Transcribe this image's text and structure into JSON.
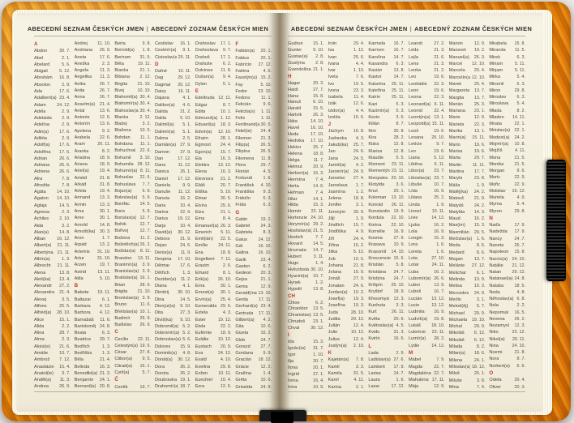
{
  "colors": {
    "cover_orange": "#e8830a",
    "accent_red": "#c0392b",
    "paper": "#f4efe0",
    "text": "#4c453d"
  },
  "band_icon": "elastic-band",
  "ribbon_icon": "bookmark-ribbon",
  "pages": [
    {
      "header_left": "ABECEDNÍ SEZNAM ČESKÝCH JMEN",
      "header_sep": "|",
      "header_right": "ABECEDNÝ ZOZNAM ČESKÝCH MIEN",
      "columns": [
        [
          "#A",
          "Abdon|30. 7.",
          "Ábel|2. 1.",
          "Abelard|5. 6.",
          "Abigail|5. 12.",
          "Abrahám|16. 8.",
          "Absolon|2. 9.",
          "Ada|17. 6.",
          "Adalbert(a)|23. 4.",
          "Adam|24. 12.",
          "Adéla|2. 9.",
          "Adelaida|2. 9.",
          "Adelína|2. 9.",
          "Adin(a)|17. 6.",
          "Adléta|2. 9.",
          "Adolf(a)|17. 6.",
          "Adolfína|17. 6.",
          "Adrian|26. 6.",
          "Adriana|26. 6.",
          "Adriena|26. 6.",
          "Afra|7. 8.",
          "Afrodita|7. 8.",
          "Agáta|14. 10.",
          "Agaton|14. 10.",
          "Aglaja|14. 5.",
          "Agnesa|2. 3.",
          "Achiles|2. 10.",
          "Aida|3. 2.",
          "Alan(a)|14. 8.",
          "Alban|16. 12.",
          "Albert(a)|21. 11.",
          "Albertýna|21. 11.",
          "Albín(a)|1. 3.",
          "Albrecht|21. 11.",
          "Alena|13. 8.",
          "Aleš(ka)|13. 4.",
          "Alexandr|27. 2.",
          "Alexandra|21. 4.",
          "Alexej|3. 5.",
          "Alfons|25. 5.",
          "Alfréd(a)|28. 10.",
          "Alice|15. 1.",
          "Alida|2. 2.",
          "Alina|28. 7.",
          "Alma|2. 3.",
          "Alois(ie)|21. 6.",
          "Amálie|10. 7.",
          "Ambrož|7. 12.",
          "Anastázie|15. 4.",
          "Anatol(ie)|3. 7.",
          "Anděl(a)|11. 3.",
          "Andrea|26. 9."
        ],
        [
          "Andrej|11. 10.",
          "Andriana|26. 9.",
          "Aneta|17. 6.",
          "Anežka|2. 3.",
          "Angela|11. 3.",
          "Angelika|11. 3.",
          "Anika|26. 7.",
          "Anita|26. 7.",
          "Anna|26. 7.",
          "Anselm(a)|21. 4.",
          "Antal|13. 6.",
          "Antonie|12. 6.",
          "Antonín|13. 6.",
          "Apolena|9. 2.",
          "Arabela|22. 6.",
          "Aram|26. 11.",
          "Aranka|8. 2.",
          "Ariadna|18. 9.",
          "Ariana|18. 9.",
          "Ariel(a)|19. 4.",
          "Aristid|31. 8.",
          "Arkád|31. 8.",
          "Arleta|19. 4.",
          "Armand|13. 3.",
          "Armin|13. 3.",
          "Arna|30. 1.",
          "Arne|30. 1.",
          "Arnold|14. 8.",
          "Arnošt(ka)|30. 3.",
          "Áron|1. 7.",
          "Árpád|13. 2.",
          "Artemis|31. 10.",
          "Artur|31. 10.",
          "Arzen|19. 7.",
          "Astrid|13. 11.",
          "Atila|5. 10.",
          "#B",
          "Babeta|19. 11.",
          "Baltazar|6. 1.",
          "Barbara|4. 12.",
          "Barbora|4. 12.",
          "Barnabáš|11. 6.",
          "Bartoloměj|24. 8.",
          "Beata|6. 3.",
          "Beatrice|29. 7.",
          "Bedřich|1. 3.",
          "Bedřiška|1. 3.",
          "Běla|21. 4.",
          "Belinda|16. 3.",
          "Benedikt(a)|21. 3.",
          "Benjamín|24. 1.",
          "Bernard(a)|20. 8."
        ],
        [
          "Berta|9. 8.",
          "Bertold(a)|1. 8.",
          "Bertram|31. 5.",
          "Běta|19. 11.",
          "Bianka|21. 1.",
          "Bibiana|2. 12.",
          "Birgita|21. 10.",
          "Bivoj|10. 10.",
          "Blahomil(a)|30. 4.",
          "Blahomír(a)|30. 4.",
          "Blahoslav(a)|30. 4.",
          "Blanka|2. 12.",
          "Blažej|3. 2.",
          "Blažena|10. 5.",
          "Bohdan|11. 1.",
          "Bohdana|11. 1.",
          "Bohuchval|22. 6.",
          "Bohumil|3. 10.",
          "Bohumila|28. 12.",
          "Bohumír(a)|8. 11.",
          "Bohuslav|22. 6.",
          "Bohuslava|7. 7.",
          "Bojan(a)|5. 9.",
          "Boleslav(a)|5. 9.",
          "Bonifác|14. 5.",
          "Boris|5. 9.",
          "Borislav(a)|12. 7.",
          "Bořek|12. 7.",
          "Bořivoj|12. 7.",
          "Božena|11. 2.",
          "Božetěch(a)|26. 2.",
          "Božidar(a)|8. 11.",
          "Brandon|13. 11.",
          "Branimír(a)|3. 9.",
          "Branislav(a)|3. 9.",
          "Bratislav(a)|16. 1.",
          "Brian|28. 9.",
          "Brigita|21. 10.",
          "Bronislav(a)|3. 9.",
          "Bruno|11. 6.",
          "Břetislav(a)|10. 1.",
          "Budimír|26. 9.",
          "Budislav|26. 9.",
          "#C",
          "Cecílie|22. 11.",
          "Celestýn(a)|19. 5.",
          "César|27. 8.",
          "Ctibor(a)|9. 5.",
          "Ctirad(a)|16. 1.",
          "Cyril(a)|5. 7.",
          "#Č",
          "Čeněk|19. 7."
        ],
        [
          "Čestislav|16. 1.",
          "Čestmír(a)|9. 1.",
          "Čistoslav(a)|25. 11.",
          "#D",
          "Dafné|10. 11.",
          "Dag|29. 12.",
          "Dagmar|20. 12.",
          "Daisy|16. 11.",
          "Dajana|4. 1.",
          "Dalibor(a)|4. 6.",
          "Dalida|21. 2.",
          "Dalila|5. 10.",
          "Dalimil(a)|5. 1.",
          "Dalimír(a)|5. 1.",
          "Dalma|2. 5.",
          "Damián(a)|27. 9.",
          "Damon|27. 9.",
          "Dan|17. 12.",
          "Dana|11. 12.",
          "Danica|26. 1.",
          "Daniel|17. 12.",
          "Daniela|9. 9.",
          "Danuše|11. 12.",
          "Danuta|16. 2.",
          "Daria|10. 4.",
          "Darina|22. 9.",
          "Darius|19. 12.",
          "Darja|10. 4.",
          "David(a)|30. 12.",
          "Debora|21. 9.",
          "Dejan|24. 6.",
          "Denis(a)|11. 9.",
          "Despina|17. 10.",
          "Dětmar|17. 6.",
          "Dětřich|1. 3.",
          "Dezider(a)|11. 2.",
          "Diana|4. 1.",
          "Dimitrij|30. 10.",
          "Dina|14. 5.",
          "Dionýz(ia)|9. 10.",
          "Dita|27. 3.",
          "Diviš(ka)|9. 10.",
          "Dobromil(a)|5. 2.",
          "Dobromír(a)|5. 2.",
          "Dobroslav(a)|5. 6.",
          "Dolores|15. 9.",
          "Dominik(a)|4. 8.",
          "Donát(a)|30. 12.",
          "Dora|26. 2.",
          "Dorota|26. 2.",
          "Doubravka|19. 1.",
          "Drahomír(a)|18. 7."
        ],
        [
          "Drahoslav|17. 1.",
          "Drahoslava|9. 7.",
          "Drahoš|17. 1.",
          "Drahuše|6. 2.",
          "Dulcinea|11. 8.",
          "Dušan(a)|9. 4.",
          "Dylan|5. 1.",
          "#E",
          "Edeltruda|12. 11.",
          "Edgar|8. 7.",
          "Edita|10. 1.",
          "Edmund(a)|1. 12.",
          "Eduard(a)|18. 3.",
          "Edvin(a)|12. 10.",
          "Efraim|28. 1.",
          "Egmont|24. 4.",
          "Egon(a)|15. 7.",
          "Ela|16. 3.",
          "Elektra|13. 12.",
          "Elena|16. 3.",
          "Eleonora|21. 2.",
          "Eliáš|20. 7.",
          "Eliška|5. 10.",
          "Elmar|30. 5.",
          "Elvíra|25. 6.",
          "Elza|21. 1.",
          "Ema|8. 4.",
          "Emanuel(a)|26. 3.",
          "Emerich|5. 11.",
          "Emil(ián)|22. 5.",
          "Emílie|24. 11.",
          "Ena|18. 8.",
          "Engelbert|7. 11.",
          "Erazim|2. 6.",
          "Erhard|8. 1.",
          "Erik(a)|26. 10.",
          "Erna|30. 1.",
          "Ernest(a)|30. 1.",
          "Ervín(a)|25. 4.",
          "Esmeralda|29. 6.",
          "Estela|4. 3.",
          "Ester|19. 12.",
          "Etela|22. 2.",
          "Eufémie|18. 9.",
          "Eulálie|10. 12.",
          "Eustach|20. 9.",
          "Eva|24. 12.",
          "Evald|4. 10.",
          "Evelína|29. 8.",
          "Evžen|10. 11.",
          "Ezechiel|10. 4.",
          "Ezra|12. 6."
        ],
        [
          "#F",
          "Fabián(a)|20. 1.",
          "Fabius|20. 1.",
          "Fabricio|27. 12.",
          "Fatima|4. 6.",
          "Faustýn(a)|15. 2.",
          "Fay|5. 10.",
          "Fedor|23. 10.",
          "Fedora|11. 1.",
          "Felicián|9. 6.",
          "Felicita(s)|1. 11.",
          "Felix|1. 11.",
          "Ferdinand(a)|30. 5.",
          "Fidel(ie)|24. 4.",
          "Filemon|21. 3.",
          "Filip(a)|26. 5.",
          "Filipína|26. 5.",
          "Filomena|11. 8.",
          "Flora|29. 7.",
          "Florián|4. 5.",
          "Fortunát|1. 6.",
          "František|4. 10.",
          "Františka|9. 3.",
          "Fridolín|6. 3.",
          "Frída|6. 3.",
          "#G",
          "Gabin|19. 2.",
          "Gabriel|24. 3.",
          "Gabriela|8. 3.",
          "Gaius|24. 12.",
          "Gál|16. 10.",
          "Galina|16. 10.",
          "Garik|23. 4.",
          "Gaston|6. 2.",
          "Gedeon|20. 3.",
          "Gejza|21. 1.",
          "Gema|12. 9.",
          "Gerald(ína)|13. 10.",
          "Gerda|17. 11.",
          "Gerhard(a)|23. 4.",
          "Gertruda|17. 11.",
          "Gilbert(a)|4. 2.",
          "Gita|10. 6.",
          "Gizela|16. 2.",
          "Gleb|24. 7.",
          "Gorazd|27. 7.",
          "Gordana|9. 9.",
          "Gracián|18. 12.",
          "Grácie|12. 2.",
          "Gražina|1. 4.",
          "Gréta|10. 6.",
          "Griselda|24. 9."
        ]
      ]
    },
    {
      "header_left": "ABECEDNÍ SEZNAM ČESKÝCH JMEN",
      "header_sep": "|",
      "header_right": "ABECEDNÝ ZOZNAM ČESKÝCH MIEN",
      "columns": [
        [
          "Gudrun|15. 1.",
          "Gunter|9. 10.",
          "Gustav(a)|2. 8.",
          "Gustýna|2. 8.",
          "Gvendolína|21. 1.",
          "#H",
          "Hagar|20. 3.",
          "Haidi|27. 7.",
          "Hana|15. 8.",
          "Hanuš|6. 10.",
          "Harald|15. 5.",
          "Hartvik|26. 3.",
          "Háta|14. 10.",
          "Havel|16. 10.",
          "Heda|17. 10.",
          "Hedvika|17. 10.",
          "Hektor|25. 7.",
          "Helena|18. 8.",
          "Helga|11. 7.",
          "Helmut|20. 9.",
          "Herbert(a)|16. 3.",
          "Hermína|7. 4.",
          "Herta|14. 6.",
          "Heřman|7. 4.",
          "Hilar|14. 1.",
          "Hilda|15. 3.",
          "Homér|22. 11.",
          "Hortenzie|24. 10.",
          "Horymír(a)|29. 2.",
          "Hostislav(a)|21. 5.",
          "Hostivít|7. 7.",
          "Hovard|14. 5.",
          "Hroznata|14. 7.",
          "Hubert|3. 11.",
          "Hugo|1. 4.",
          "Hvězdoslav|30. 10.",
          "Hyacint(a)|10. 7.",
          "Hynek|1. 2.",
          "Hypolit|13. 8.",
          "#CH",
          "Chloe|6. 2.",
          "Chranibor|13. 5.",
          "Chranislav(a)|13. 5.",
          "Chrudoš|23. 1.",
          "Chval|30. 12.",
          "#I",
          "Ida|15. 3.",
          "Ignác(ia)|31. 7.",
          "Igor|1. 10.",
          "Ilja|20. 7.",
          "Ilona|20. 1.",
          "Ingrid|27. 1.",
          "Irena|16. 4.",
          "Irma|10. 9."
        ],
        [
          "Irvin|29. 4.",
          "Isa|1. 12.",
          "Ivan|25. 6.",
          "Ivana|4. 4.",
          "Ivar|1. 10.",
          "Iveta|7. 6.",
          "Ivo|19. 5.",
          "Ivona|23. 3.",
          "Izabela|11. 4.",
          "Izák|12. 6.",
          "Izidor(a)|4. 4.",
          "Izolda|15. 6.",
          "#J",
          "Jáchym|16. 8.",
          "Jadranka|4. 3.",
          "Jakub(ka)|25. 7.",
          "Jan|24. 6.",
          "Jana|24. 5.",
          "Jarmil(a)|4. 2.",
          "Jaromír(a)|24. 9.",
          "Jaroslav|27. 4.",
          "Jaroslava|1. 7.",
          "Jasmína|1. 2.",
          "Jelena|18. 8.",
          "Jenifer|3. 1.",
          "Jeroným|30. 9.",
          "Jiljí|1. 9.",
          "Jindřich|15. 7.",
          "Jindřiška|4. 9.",
          "Jiří|24. 4.",
          "Jiřina|15. 2.",
          "Jitka|5. 12.",
          "Job|10. 5.",
          "Johana|21. 8.",
          "Jolana|15. 9.",
          "Jonáš|27. 9.",
          "Jonatan|24. 6.",
          "Jordan(a)|10. 2.",
          "Josef(a)|19. 3.",
          "Josefína|19. 3.",
          "Juda|28. 10.",
          "Judita|29. 12.",
          "Julián|12. 4.",
          "Julie|10. 12.",
          "Julius|12. 4.",
          "Justýn(a)|2. 10.",
          "#K",
          "Kajetán(a)|7. 8.",
          "Kamil|3. 3.",
          "Kamila|31. 5.",
          "Karel|4. 11.",
          "Karina|2. 1."
        ],
        [
          "Karmela|16. 7.",
          "Karmen|16. 7.",
          "Karolína|14. 7.",
          "Kasandra|6. 3.",
          "Kasián|13. 8.",
          "Kastor|14. 7.",
          "Katarína|25. 11.",
          "Kateřina|25. 11.",
          "Katrin|25. 11.",
          "Kazi|5. 3.",
          "Kazimír(a)|5. 3.",
          "Kevin|3. 6.",
          "Kilián|8. 7.",
          "Kim|30. 8.",
          "Kira|28. 2.",
          "Klára|12. 8.",
          "Klarisa|12. 8.",
          "Klaudie|5. 5.",
          "Klement|23. 11.",
          "Klementýna|23. 11.",
          "Kleopatra|20. 10.",
          "Klotylda|3. 6.",
          "Knut|20. 1.",
          "Koloman|13. 10.",
          "Konrád|26. 11.",
          "Konstantin|19. 9.",
          "Kordula|22. 10.",
          "Korina|22. 10.",
          "Kornélie|16. 9.",
          "Kosma|27. 9.",
          "Krasava|10. 9.",
          "Krasomil|14. 10.",
          "Krescencie|15. 6.",
          "Kristián|5. 8.",
          "Kristiána|24. 7.",
          "Kristýna|24. 7.",
          "Krišpín|25. 10.",
          "Kryštof|18. 9.",
          "Křesomysl|12. 3.",
          "Kunhuta|3. 3.",
          "Kurt|26. 11.",
          "Květa|20. 6.",
          "Květoslav(a)|4. 5.",
          "Kvido|31. 3.",
          "Kvirín|16. 6.",
          "#L",
          "Lada|2. 9.",
          "Ladislav(a)|27. 6.",
          "Lambert|17. 9.",
          "Larisa|14. 7.",
          "Laura|1. 6.",
          "Lazar|17. 12."
        ],
        [
          "Leandr|27. 2.",
          "Léda|21. 3.",
          "Lejla|21. 6.",
          "Lena|21. 3.",
          "Lenka|21. 2.",
          "Leo|19. 6.",
          "Leokádie|22. 3.",
          "Leon|19. 6.",
          "Leona|22. 3.",
          "Leonard(a)|6. 11.",
          "Leonid|22. 4.",
          "Leontýn(a)|13. 1.",
          "Leopold(a)|15. 11.",
          "Leoš|19. 6.",
          "Lesana|29. 10.",
          "Letície|9. 7.",
          "Lev|19. 6.",
          "Liana|5. 12.",
          "Liběna|6. 11.",
          "Libor(a)|23. 7.",
          "Liboslav(a)|23. 7.",
          "Libuše|10. 7.",
          "Lída|16. 9.",
          "Liliana|25. 2.",
          "Linda|1. 9.",
          "Lionel|10. 11.",
          "Livie|14. 12.",
          "Ljuba|16. 2.",
          "Lola|16. 9.",
          "Longin|15. 3.",
          "Lora|1. 6.",
          "Loreta|1. 6.",
          "Lota|27. 10.",
          "Lotar|24. 11.",
          "Luba|16. 2.",
          "Lubomír(a)|26. 6.",
          "Lubor|13. 9.",
          "Luboš|16. 7.",
          "Lucián|13. 12.",
          "Lucie|13. 12.",
          "Ludmila|16. 9.",
          "Ludvík(a)|19. 8.",
          "Lukáš|18. 10.",
          "Lukrécie|23. 11.",
          "Lumír(a)|28. 2.",
          "Lýdie|14. 12.",
          "#M",
          "Mabel|7. 9.",
          "Magda|22. 7.",
          "Magdaléna|22. 7.",
          "Mahulena|17. 11.",
          "Mája|12. 9."
        ],
        [
          "Manon|12. 9.",
          "Mansvet|19. 2.",
          "Manuel(a)|26. 3.",
          "Marcel|12. 10.",
          "Marcela|20. 4.",
          "Marcelín(a)|12. 10.",
          "Marek|25. 4.",
          "Margareta|13. 7.",
          "Margita|13. 7.",
          "Marián|25. 3.",
          "Mariana|23. 1.",
          "Marie|12. 9.",
          "Marieta|22. 3.",
          "Marika|13. 1.",
          "Marin(a)|15. 11.",
          "Mario|19. 6.",
          "Marisa|19. 6.",
          "Marta|29. 7.",
          "Martin|11. 11.",
          "Martina|17. 7.",
          "Maryla|23. 8.",
          "Máša|1. 9.",
          "Matěj(ka)|24. 2.",
          "Matouš|21. 9.",
          "Matyáš|24. 2.",
          "Matylda|14. 3.",
          "Maud|16. 2.",
          "Max(im)|15. 3.",
          "Maxmilián|29. 5.",
          "Mečislav(a)|1. 6.",
          "Meda|8. 6.",
          "Medard|8. 6.",
          "Megan|13. 7.",
          "Melánie|27. 12.",
          "Melichar|6. 1.",
          "Melinda|13. 9.",
          "Melisa|10. 3.",
          "Mercedes|24. 9.",
          "Merlin|3. 1.",
          "Metod(ěj)|5. 7.",
          "Michael|29. 9.",
          "Michaela|19. 10.",
          "Michal|29. 9.",
          "Mikoláš|6. 12.",
          "Mikuláš|6. 12.",
          "Milada|8. 2.",
          "Milan(a)|18. 6.",
          "Milena|24. 1.",
          "Miloslav(a)|18. 12.",
          "Miloš|25. 1.",
          "Miluše|3. 8.",
          "Mina|7. 4."
        ],
        [
          "Mirabela|15. 8.",
          "Miranda|11. 5.",
          "Mirek|6. 3.",
          "Miriam|5. 11.",
          "Mirjam|5. 11.",
          "Mirka|5. 4.",
          "Miromil|6. 3.",
          "Miron|29. 8.",
          "Miroslav|6. 3.",
          "Miroslava|5. 4.",
          "Mlada|8. 2.",
          "Mladen|14. 11.",
          "Mnata|22. 1.",
          "Mnislav(a)|22. 1.",
          "Modest(a)|24. 2.",
          "Mojmír(a)|10. 8.",
          "Mojžíš|4. 11.",
          "Mona|21. 5.",
          "Monika|21. 5.",
          "Morgan|9. 6.",
          "Moric|22. 9.",
          "Mořic|22. 9.",
          "Mstislav|19. 12.",
          "Muriela|4. 9.",
          "Myrna|5. 4.",
          "Myron|29. 8.",
          "#N",
          "Naďa|17. 9.",
          "Nadežda|17. 9.",
          "Nancy|24. 7.",
          "Naneta|26. 7.",
          "Napoleon|15. 8.",
          "Narcis(a)|24. 10.",
          "Natálie|21. 12.",
          "Natan|29. 12.",
          "Natanael(a)|24. 8.",
          "Nataša|18. 5.",
          "Neda|4. 8.",
          "Něhoslav(a)|6. 8.",
          "Nela|2. 2.",
          "Nepomuk|16. 5.",
          "Nevena|26. 2.",
          "Nezamysl|12. 3.",
          "Niko|23. 12.",
          "Nikol(a)|20. 11.",
          "Nina|24. 10.",
          "Noemi|21. 8.",
          "Nora|8. 7.",
          "Norbert(a)|6. 6.",
          "#O",
          "Odeta|20. 4.",
          "Oliver|20. 3."
        ]
      ]
    }
  ]
}
